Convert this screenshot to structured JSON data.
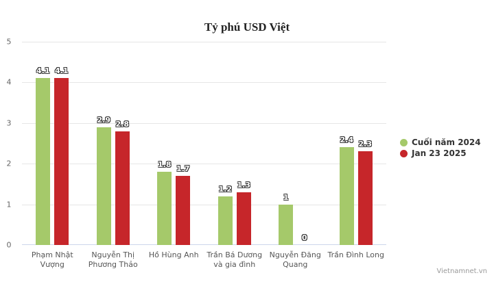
{
  "chart_data": {
    "type": "bar",
    "title": "Tỷ phú USD Việt",
    "xlabel": "",
    "ylabel": "",
    "ylim": [
      0,
      5
    ],
    "yticks": [
      "0",
      "1",
      "2",
      "3",
      "4",
      "5"
    ],
    "grid": true,
    "legend_position": "right",
    "categories": [
      [
        "Phạm Nhật",
        "Vượng"
      ],
      [
        "Nguyễn Thị",
        "Phương Thảo"
      ],
      [
        "Hồ Hùng Anh",
        ""
      ],
      [
        "Trần Bá Dương",
        "và gia đình"
      ],
      [
        "Nguyễn Đăng",
        "Quang"
      ],
      [
        "Trần Đình Long",
        ""
      ]
    ],
    "series": [
      {
        "name": "Cuối năm 2024",
        "color": "#a5c96a",
        "values": [
          4.1,
          2.9,
          1.8,
          1.2,
          1,
          2.4
        ],
        "labels": [
          "4.1",
          "2.9",
          "1.8",
          "1.2",
          "1",
          "2.4"
        ]
      },
      {
        "name": "Jan 23 2025",
        "color": "#c6262a",
        "values": [
          4.1,
          2.8,
          1.7,
          1.3,
          0,
          2.3
        ],
        "labels": [
          "4.1",
          "2.8",
          "1.7",
          "1.3",
          "0",
          "2.3"
        ]
      }
    ]
  },
  "credit": "Vietnamnet.vn"
}
